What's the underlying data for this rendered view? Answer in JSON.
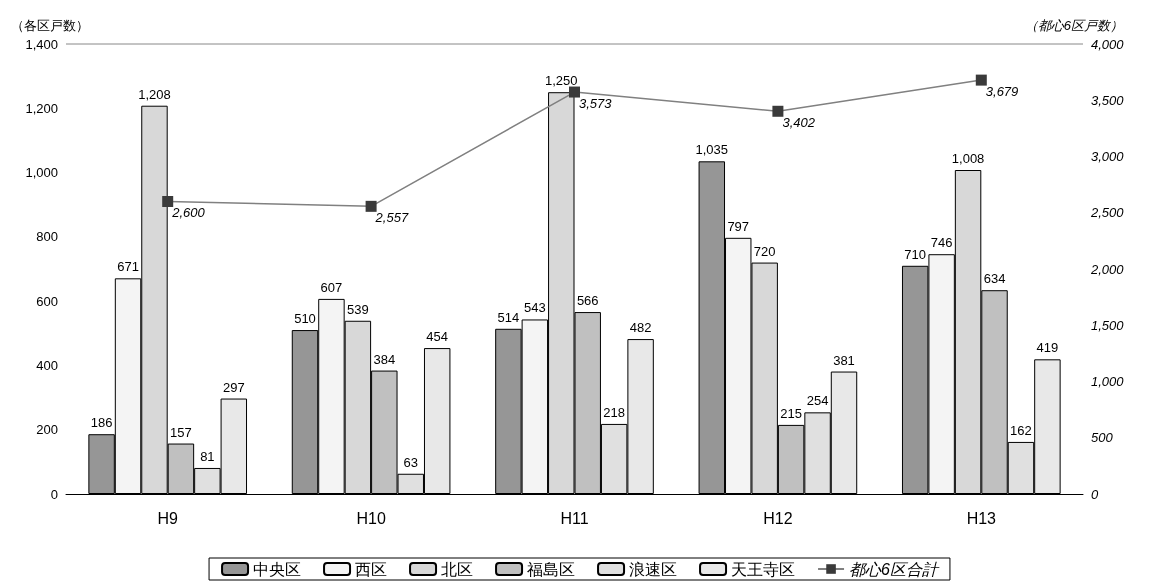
{
  "chart_data": {
    "type": "bar",
    "categories": [
      "H9",
      "H10",
      "H11",
      "H12",
      "H13"
    ],
    "ylabel": "（各区戸数）",
    "y2label": "（都心6区戸数）",
    "ylim": [
      0,
      1400
    ],
    "yticks": [
      0,
      200,
      400,
      600,
      800,
      {
        "value": 1000,
        "label": "1,000"
      },
      {
        "value": 1200,
        "label": "1,200"
      },
      {
        "value": 1400,
        "label": "1,400"
      }
    ],
    "y2lim": [
      0,
      4000
    ],
    "y2ticks": [
      0,
      500,
      {
        "value": 1000,
        "label": "1,000"
      },
      {
        "value": 1500,
        "label": "1,500"
      },
      {
        "value": 2000,
        "label": "2,000"
      },
      {
        "value": 2500,
        "label": "2,500"
      },
      {
        "value": 3000,
        "label": "3,000"
      },
      {
        "value": 3500,
        "label": "3,500"
      },
      {
        "value": 4000,
        "label": "4,000"
      }
    ],
    "grid": false,
    "legend": "bottom",
    "series": [
      {
        "name": "中央区",
        "color": "#969696",
        "values": [
          186,
          510,
          514,
          1035,
          710
        ],
        "value_labels": [
          "186",
          "510",
          "514",
          "1,035",
          "710"
        ]
      },
      {
        "name": "西区",
        "color": "#f4f4f4",
        "values": [
          671,
          607,
          543,
          797,
          746
        ],
        "value_labels": [
          "671",
          "607",
          "543",
          "797",
          "746"
        ]
      },
      {
        "name": "北区",
        "color": "#d8d8d8",
        "values": [
          1208,
          539,
          1250,
          720,
          1008
        ],
        "value_labels": [
          "1,208",
          "539",
          "1,250",
          "720",
          "1,008"
        ]
      },
      {
        "name": "福島区",
        "color": "#c0c0c0",
        "values": [
          157,
          384,
          566,
          215,
          634
        ],
        "value_labels": [
          "157",
          "384",
          "566",
          "215",
          "634"
        ]
      },
      {
        "name": "浪速区",
        "color": "#e0e0e0",
        "values": [
          81,
          63,
          218,
          254,
          162
        ],
        "value_labels": [
          "81",
          "63",
          "218",
          "254",
          "162"
        ]
      },
      {
        "name": "天王寺区",
        "color": "#e8e8e8",
        "values": [
          297,
          454,
          482,
          381,
          419
        ],
        "value_labels": [
          "297",
          "454",
          "482",
          "381",
          "419"
        ]
      },
      {
        "name": "都心6区合計",
        "type": "line",
        "axis": "y2",
        "color": "#808080",
        "marker": "square",
        "values": [
          2600,
          2557,
          3573,
          3402,
          3679
        ],
        "value_labels": [
          "2,600",
          "2,557",
          "3,573",
          "3,402",
          "3,679"
        ]
      }
    ]
  }
}
